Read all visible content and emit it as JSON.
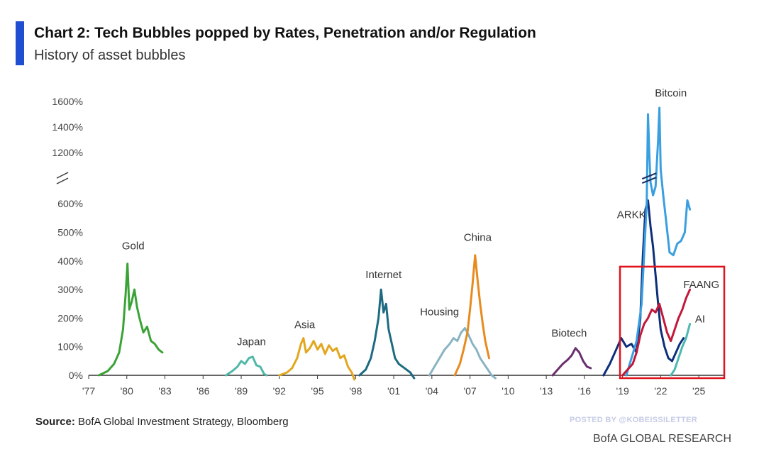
{
  "header": {
    "title": "Chart 2: Tech Bubbles popped by Rates, Penetration and/or Regulation",
    "subtitle": "History of asset bubbles"
  },
  "footer": {
    "source_label": "Source:",
    "source_text": "BofA Global Investment Strategy, Bloomberg",
    "posted_by": "POSTED BY @KOBEISSILETTER",
    "credit": "BofA GLOBAL RESEARCH"
  },
  "colors": {
    "accent_bar": "#1f4fd0",
    "highlight_box": "#e0141e",
    "axis": "#555555"
  },
  "chart_data": {
    "type": "line",
    "title": "",
    "xlabel": "",
    "ylabel": "",
    "grid": false,
    "y_axis_break": "between 600% and 1200%",
    "ylim": [
      0,
      1600
    ],
    "xlim": [
      1977,
      2027
    ],
    "x_tick_labels": [
      "'77",
      "'80",
      "'83",
      "'86",
      "'89",
      "'92",
      "'95",
      "'98",
      "'01",
      "'04",
      "'07",
      "'10",
      "'13",
      "'16",
      "'19",
      "'22",
      "'25"
    ],
    "x_tick_years": [
      1977,
      1980,
      1983,
      1986,
      1989,
      1992,
      1995,
      1998,
      2001,
      2004,
      2007,
      2010,
      2013,
      2016,
      2019,
      2022,
      2025
    ],
    "y_tick_labels": [
      "0%",
      "100%",
      "200%",
      "300%",
      "400%",
      "500%",
      "600%",
      "1200%",
      "1400%",
      "1600%"
    ],
    "y_tick_values": [
      0,
      100,
      200,
      300,
      400,
      500,
      600,
      1200,
      1400,
      1600
    ],
    "highlight_box": {
      "x_range": [
        2018.8,
        2027.0
      ],
      "y_range": [
        -10,
        380
      ]
    },
    "series": [
      {
        "name": "Gold",
        "color": "#3aa336",
        "x": [
          1977.8,
          1978.5,
          1979.0,
          1979.4,
          1979.7,
          1979.9,
          1980.05,
          1980.2,
          1980.4,
          1980.6,
          1980.8,
          1981.0,
          1981.3,
          1981.6,
          1981.9,
          1982.2,
          1982.5,
          1982.8
        ],
        "y": [
          0,
          15,
          40,
          80,
          160,
          280,
          390,
          230,
          260,
          300,
          240,
          200,
          150,
          170,
          120,
          110,
          90,
          80
        ]
      },
      {
        "name": "Japan",
        "color": "#4fb8a8",
        "x": [
          1987.8,
          1988.3,
          1988.7,
          1989.0,
          1989.3,
          1989.6,
          1989.9,
          1990.2,
          1990.5,
          1990.8,
          1991.0
        ],
        "y": [
          0,
          15,
          30,
          50,
          40,
          60,
          65,
          35,
          30,
          5,
          0
        ]
      },
      {
        "name": "Asia",
        "color": "#e2a71e",
        "x": [
          1992.0,
          1992.6,
          1993.0,
          1993.4,
          1993.7,
          1993.9,
          1994.1,
          1994.4,
          1994.7,
          1995.0,
          1995.3,
          1995.6,
          1995.9,
          1996.2,
          1996.5,
          1996.8,
          1997.1,
          1997.4,
          1997.7,
          1997.9
        ],
        "y": [
          0,
          10,
          25,
          60,
          110,
          130,
          80,
          95,
          120,
          90,
          110,
          75,
          105,
          85,
          95,
          60,
          70,
          30,
          10,
          -15
        ]
      },
      {
        "name": "Internet",
        "color": "#1d6b80",
        "x": [
          1998.3,
          1998.8,
          1999.2,
          1999.5,
          1999.8,
          2000.0,
          2000.2,
          2000.4,
          2000.6,
          2000.8,
          2001.1,
          2001.4,
          2001.7,
          2002.0,
          2002.3,
          2002.6
        ],
        "y": [
          0,
          20,
          60,
          120,
          200,
          300,
          220,
          250,
          160,
          120,
          60,
          40,
          30,
          20,
          10,
          -10
        ]
      },
      {
        "name": "Housing",
        "color": "#8ab4c2",
        "x": [
          2003.8,
          2004.2,
          2004.6,
          2005.0,
          2005.4,
          2005.7,
          2006.0,
          2006.3,
          2006.6,
          2006.9,
          2007.2,
          2007.5,
          2007.8,
          2008.1,
          2008.4,
          2008.7,
          2009.0
        ],
        "y": [
          0,
          30,
          60,
          90,
          110,
          130,
          120,
          150,
          165,
          140,
          110,
          90,
          60,
          40,
          20,
          0,
          -10
        ]
      },
      {
        "name": "China",
        "color": "#e88a1e",
        "x": [
          2005.8,
          2006.2,
          2006.5,
          2006.8,
          2007.0,
          2007.2,
          2007.4,
          2007.6,
          2007.8,
          2008.0,
          2008.2,
          2008.5
        ],
        "y": [
          0,
          40,
          90,
          150,
          230,
          320,
          420,
          330,
          250,
          180,
          120,
          60
        ]
      },
      {
        "name": "Biotech",
        "color": "#6b2f6e",
        "x": [
          2013.5,
          2013.9,
          2014.3,
          2014.7,
          2015.0,
          2015.3,
          2015.6,
          2015.9,
          2016.2,
          2016.5
        ],
        "y": [
          0,
          20,
          40,
          55,
          70,
          95,
          80,
          50,
          30,
          25
        ]
      },
      {
        "name": "ARKK",
        "color": "#0d2f7a",
        "x": [
          2017.5,
          2018.0,
          2018.5,
          2018.9,
          2019.3,
          2019.7,
          2020.1,
          2020.4,
          2020.6,
          2020.8,
          2021.0,
          2021.2,
          2021.4,
          2021.6,
          2021.8,
          2022.0,
          2022.3,
          2022.6,
          2022.9,
          2023.2,
          2023.5,
          2023.8
        ],
        "y": [
          0,
          40,
          90,
          130,
          100,
          110,
          80,
          200,
          420,
          580,
          640,
          520,
          450,
          350,
          250,
          160,
          100,
          60,
          50,
          80,
          110,
          130
        ]
      },
      {
        "name": "Bitcoin",
        "color": "#3a9fe0",
        "x": [
          2019.3,
          2019.7,
          2020.1,
          2020.5,
          2020.9,
          2021.0,
          2021.1,
          2021.2,
          2021.4,
          2021.6,
          2021.8,
          2021.9,
          2022.0,
          2022.2,
          2022.4,
          2022.7,
          2023.0,
          2023.3,
          2023.6,
          2023.9,
          2024.1,
          2024.3
        ],
        "y": [
          0,
          60,
          120,
          250,
          600,
          1500,
          1200,
          850,
          700,
          800,
          1300,
          1550,
          1000,
          700,
          550,
          430,
          420,
          460,
          470,
          500,
          640,
          580
        ]
      },
      {
        "name": "FAANG",
        "color": "#c2183a",
        "x": [
          2019.0,
          2019.4,
          2019.8,
          2020.1,
          2020.4,
          2020.7,
          2021.0,
          2021.3,
          2021.6,
          2021.9,
          2022.2,
          2022.5,
          2022.8,
          2023.1,
          2023.4,
          2023.7,
          2024.0,
          2024.3
        ],
        "y": [
          0,
          20,
          40,
          80,
          140,
          180,
          200,
          230,
          220,
          250,
          200,
          150,
          120,
          160,
          200,
          230,
          270,
          300
        ]
      },
      {
        "name": "AI",
        "color": "#4db8b0",
        "x": [
          2022.8,
          2023.1,
          2023.4,
          2023.7,
          2024.0,
          2024.3
        ],
        "y": [
          0,
          20,
          60,
          100,
          130,
          180
        ]
      }
    ],
    "labels": [
      {
        "text": "Gold",
        "x": 1980.5,
        "y": 440
      },
      {
        "text": "Japan",
        "x": 1989.8,
        "y": 105
      },
      {
        "text": "Asia",
        "x": 1994.0,
        "y": 165
      },
      {
        "text": "Internet",
        "x": 2000.2,
        "y": 340
      },
      {
        "text": "Housing",
        "x": 2004.6,
        "y": 210
      },
      {
        "text": "China",
        "x": 2007.6,
        "y": 470
      },
      {
        "text": "Biotech",
        "x": 2014.8,
        "y": 135
      },
      {
        "text": "ARKK",
        "x": 2019.7,
        "y": 550
      },
      {
        "text": "Bitcoin",
        "x": 2022.8,
        "y": 1640
      },
      {
        "text": "FAANG",
        "x": 2025.2,
        "y": 305
      },
      {
        "text": "AI",
        "x": 2025.1,
        "y": 185
      }
    ]
  }
}
